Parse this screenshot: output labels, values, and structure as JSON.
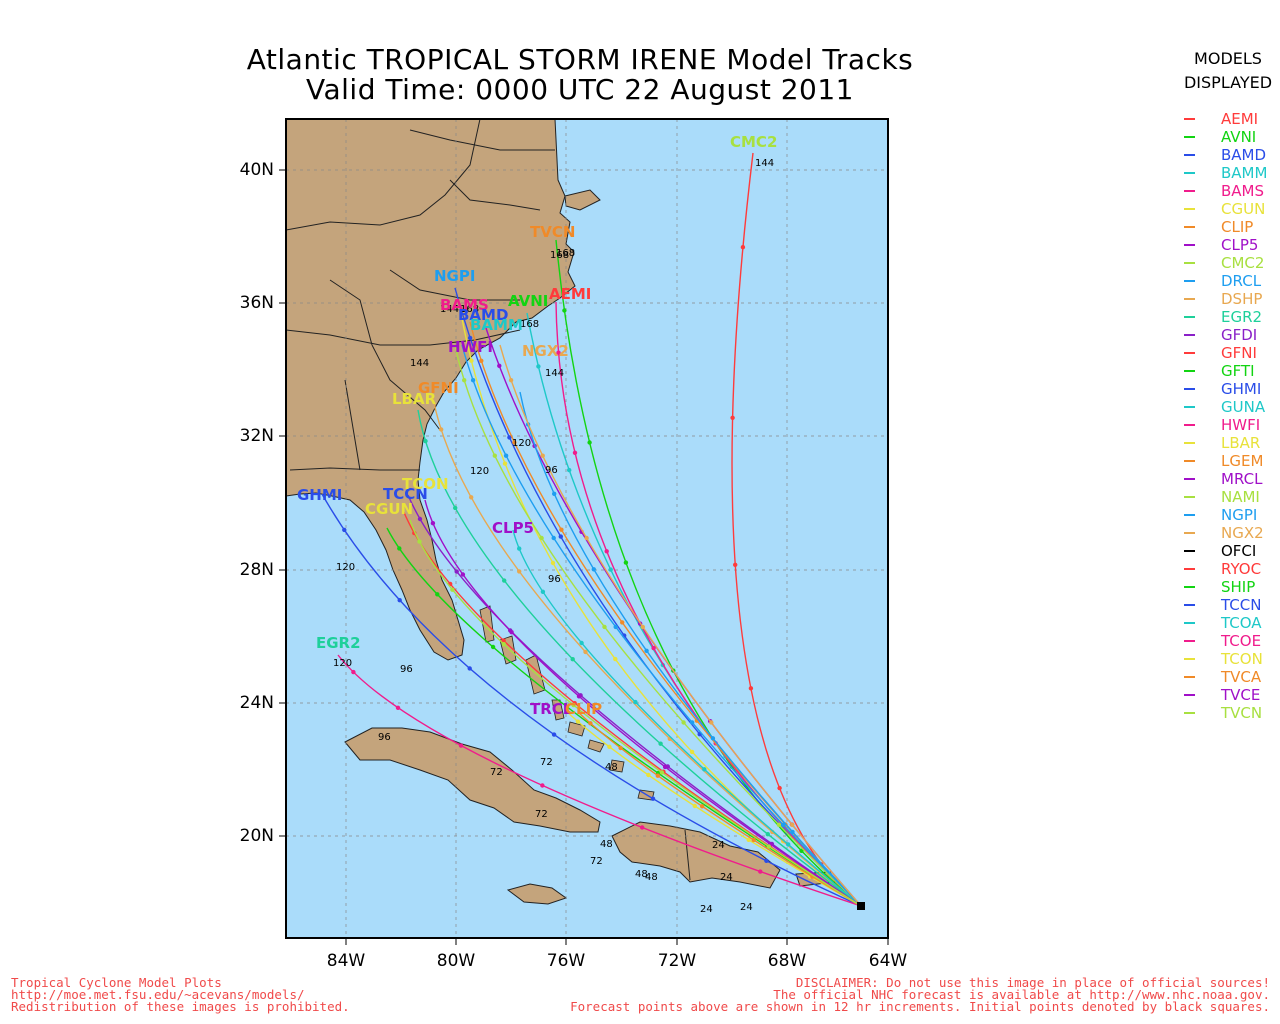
{
  "title": {
    "line1": "Atlantic TROPICAL STORM IRENE Model Tracks",
    "line2": "Valid Time: 0000 UTC 22 August 2011"
  },
  "axes": {
    "lat_labels": [
      "40N",
      "36N",
      "32N",
      "28N",
      "24N",
      "20N"
    ],
    "lon_labels": [
      "84W",
      "80W",
      "76W",
      "72W",
      "68W",
      "64W"
    ]
  },
  "legend": {
    "header": [
      "MODELS",
      "DISPLAYED"
    ],
    "models": [
      {
        "name": "AEMI",
        "color": "#ff3b3b"
      },
      {
        "name": "AVNI",
        "color": "#12d412"
      },
      {
        "name": "BAMD",
        "color": "#2a4de8"
      },
      {
        "name": "BAMM",
        "color": "#1ec8c8"
      },
      {
        "name": "BAMS",
        "color": "#f01c8c"
      },
      {
        "name": "CGUN",
        "color": "#e8e23a"
      },
      {
        "name": "CLIP",
        "color": "#f08a28"
      },
      {
        "name": "CLP5",
        "color": "#a010c8"
      },
      {
        "name": "CMC2",
        "color": "#a8e040"
      },
      {
        "name": "DRCL",
        "color": "#1e9ef0"
      },
      {
        "name": "DSHP",
        "color": "#e8a850"
      },
      {
        "name": "EGR2",
        "color": "#1ed09a"
      },
      {
        "name": "GFDI",
        "color": "#8a20c8"
      },
      {
        "name": "GFNI",
        "color": "#ff3b3b"
      },
      {
        "name": "GFTI",
        "color": "#12d412"
      },
      {
        "name": "GHMI",
        "color": "#2a4de8"
      },
      {
        "name": "GUNA",
        "color": "#1ec8c8"
      },
      {
        "name": "HWFI",
        "color": "#f01c8c"
      },
      {
        "name": "LBAR",
        "color": "#e8e23a"
      },
      {
        "name": "LGEM",
        "color": "#f08a28"
      },
      {
        "name": "MRCL",
        "color": "#a010c8"
      },
      {
        "name": "NAMI",
        "color": "#a8e040"
      },
      {
        "name": "NGPI",
        "color": "#1e9ef0"
      },
      {
        "name": "NGX2",
        "color": "#e8a850"
      },
      {
        "name": "OFCI",
        "color": "#000000"
      },
      {
        "name": "RYOC",
        "color": "#ff3b3b"
      },
      {
        "name": "SHIP",
        "color": "#12d412"
      },
      {
        "name": "TCCN",
        "color": "#2a4de8"
      },
      {
        "name": "TCOA",
        "color": "#1ec8c8"
      },
      {
        "name": "TCOE",
        "color": "#f01c8c"
      },
      {
        "name": "TCON",
        "color": "#e8e23a"
      },
      {
        "name": "TVCA",
        "color": "#f08a28"
      },
      {
        "name": "TVCE",
        "color": "#a010c8"
      },
      {
        "name": "TVCN",
        "color": "#a8e040"
      }
    ]
  },
  "colors": {
    "ocean": "#aadcfa",
    "land": "#c4a47c",
    "footer_text": "#f04a4a"
  },
  "map_labels": [
    {
      "text": "CMC2",
      "color": "#a8e040"
    },
    {
      "text": "TVCN",
      "color": "#f08a28"
    },
    {
      "text": "NGPI",
      "color": "#1e9ef0"
    },
    {
      "text": "AVNI",
      "color": "#12d412"
    },
    {
      "text": "AEMI",
      "color": "#ff3b3b"
    },
    {
      "text": "BAMS",
      "color": "#f01c8c"
    },
    {
      "text": "BAMD",
      "color": "#2a4de8"
    },
    {
      "text": "BAMM",
      "color": "#1ec8c8"
    },
    {
      "text": "HWFI",
      "color": "#a010c8"
    },
    {
      "text": "NGX2",
      "color": "#e8a850"
    },
    {
      "text": "GFNI",
      "color": "#f08a28"
    },
    {
      "text": "LBAR",
      "color": "#e8e23a"
    },
    {
      "text": "TCCN",
      "color": "#2a4de8"
    },
    {
      "text": "TCON",
      "color": "#e8e23a"
    },
    {
      "text": "CGUN",
      "color": "#e8e23a"
    },
    {
      "text": "GHMI",
      "color": "#2a4de8"
    },
    {
      "text": "CLP5",
      "color": "#a010c8"
    },
    {
      "text": "EGR2",
      "color": "#1ed09a"
    },
    {
      "text": "TRCL",
      "color": "#a010c8"
    },
    {
      "text": "CLIP",
      "color": "#f08a28"
    }
  ],
  "forecast_hour_labels": [
    "24",
    "48",
    "72",
    "96",
    "120",
    "144",
    "168"
  ],
  "footer": {
    "left": [
      "Tropical Cyclone Model Plots",
      "http://moe.met.fsu.edu/~acevans/models/",
      "Redistribution of these images is prohibited."
    ],
    "right": [
      "DISCLAIMER: Do not use this image in place of official sources!",
      "The official NHC forecast is available at http://www.nhc.noaa.gov.",
      "Forecast points above are shown in 12 hr increments. Initial points denoted by black squares."
    ]
  }
}
